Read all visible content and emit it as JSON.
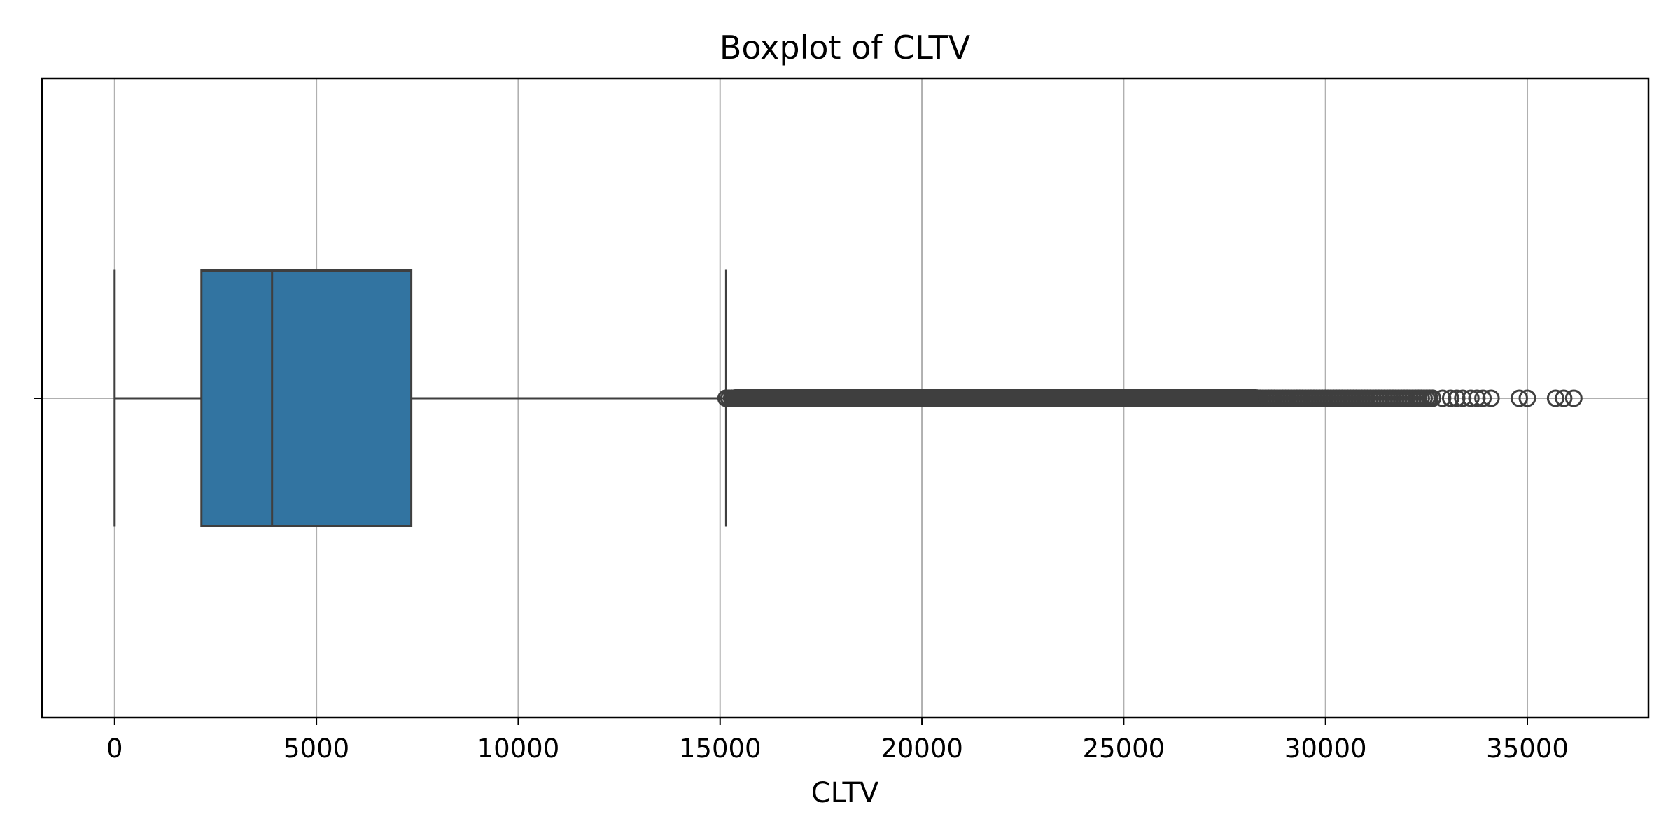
{
  "chart_data": {
    "type": "box",
    "title": "Boxplot of CLTV",
    "xlabel": "CLTV",
    "ylabel": "",
    "xlim": [
      -1800,
      38000
    ],
    "xticks": [
      0,
      5000,
      10000,
      15000,
      20000,
      25000,
      30000,
      35000
    ],
    "xtick_labels": [
      "0",
      "5000",
      "10000",
      "15000",
      "20000",
      "25000",
      "30000",
      "35000"
    ],
    "grid": true,
    "orientation": "horizontal",
    "box": {
      "whisker_low": 0,
      "q1": 2150,
      "median": 3900,
      "q3": 7350,
      "whisker_high": 15150
    },
    "outliers": {
      "dense_range": [
        15150,
        32700
      ],
      "sparse_points": [
        32900,
        33100,
        33250,
        33400,
        33600,
        33750,
        33900,
        34100,
        34800,
        35000,
        35700,
        35900,
        36150
      ]
    },
    "colors": {
      "box_fill": "#3274a1",
      "line": "#3f3f3f",
      "grid": "#b0b0b0",
      "frame": "#000000"
    }
  }
}
